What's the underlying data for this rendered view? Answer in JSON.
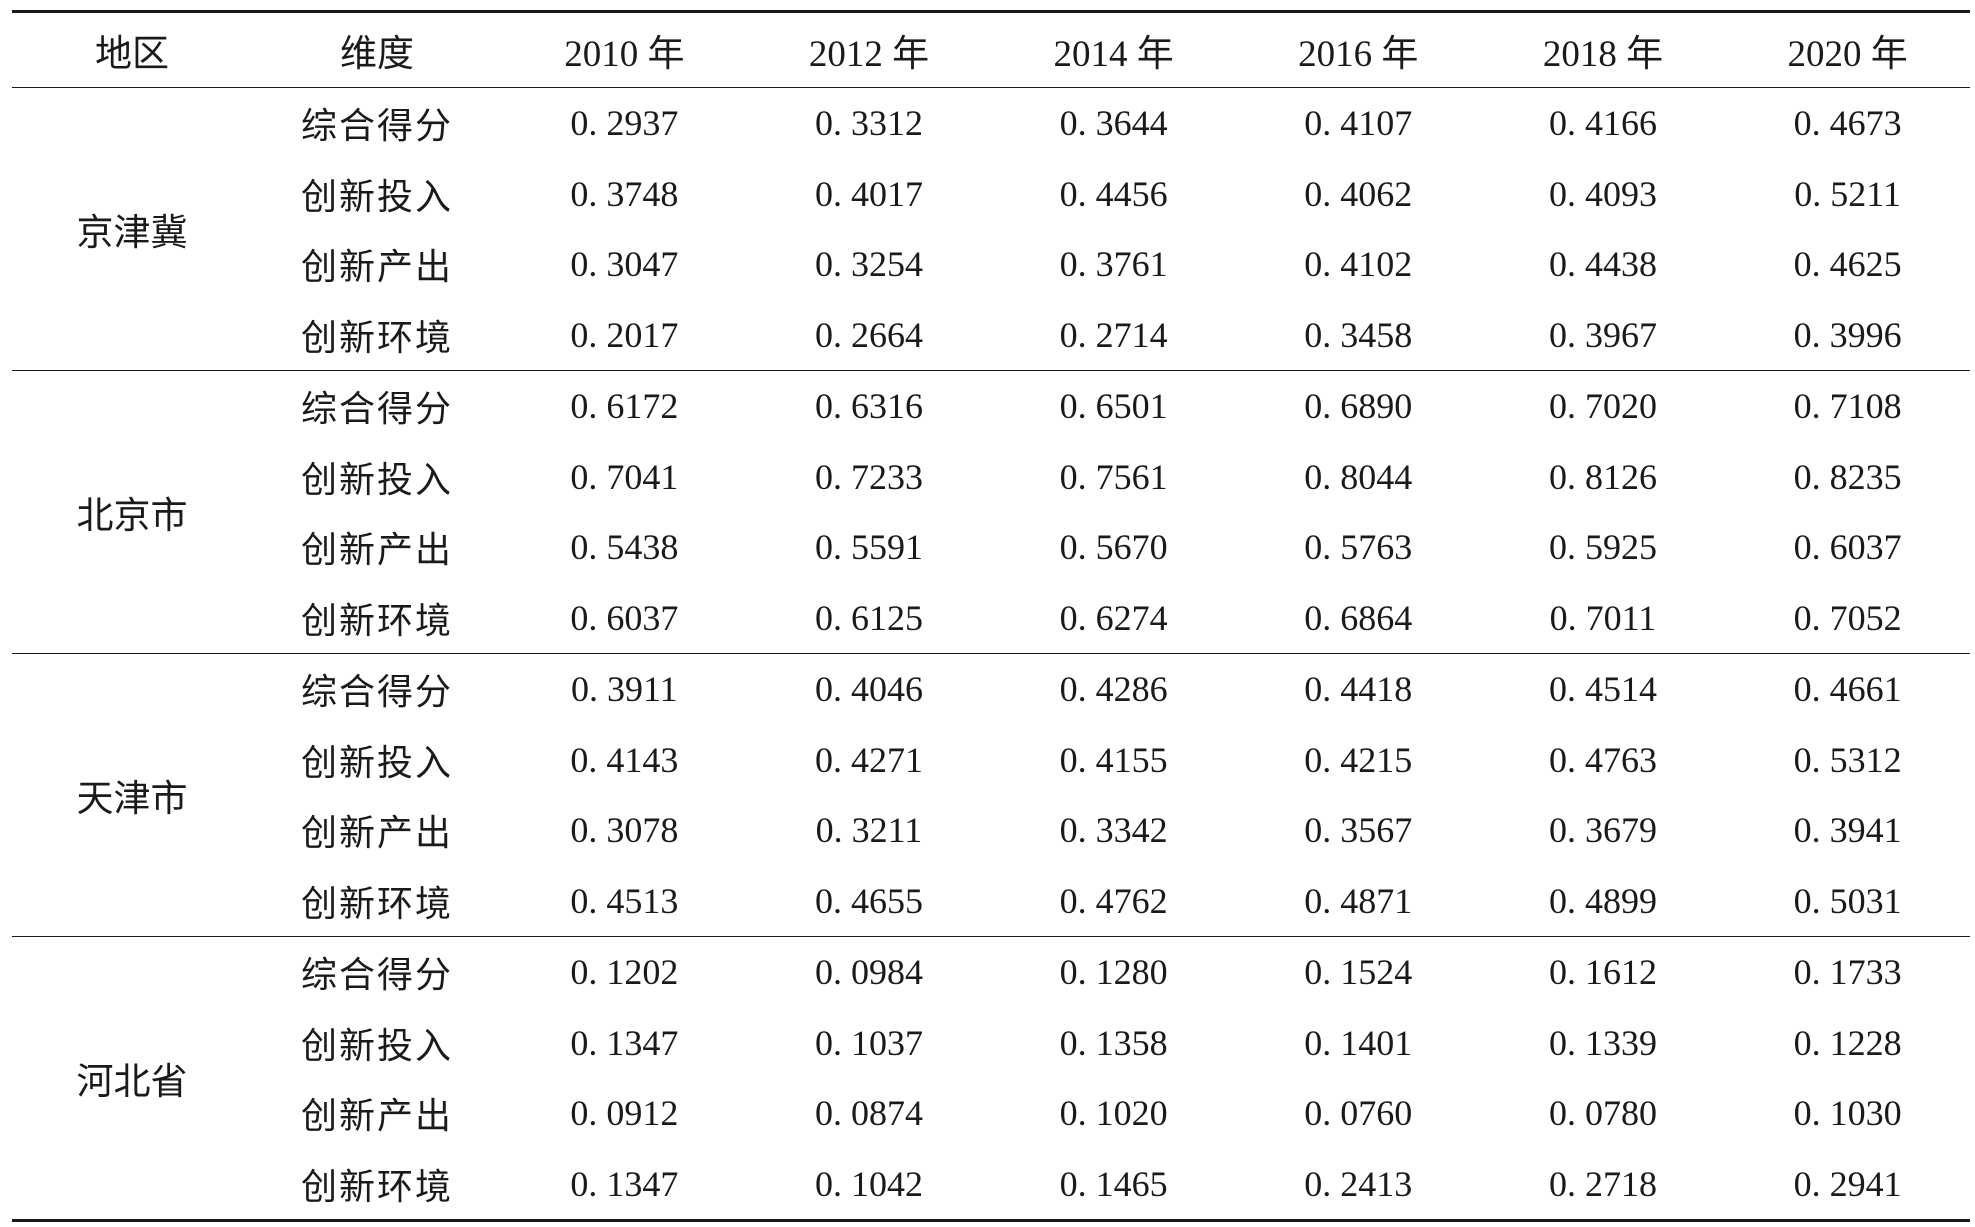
{
  "table": {
    "headers": [
      "地区",
      "维度",
      "2010 年",
      "2012 年",
      "2014 年",
      "2016 年",
      "2018 年",
      "2020 年"
    ],
    "groups": [
      {
        "region": "京津冀",
        "rows": [
          {
            "dimension": "综合得分",
            "values": [
              "0. 2937",
              "0. 3312",
              "0. 3644",
              "0. 4107",
              "0. 4166",
              "0. 4673"
            ]
          },
          {
            "dimension": "创新投入",
            "values": [
              "0. 3748",
              "0. 4017",
              "0. 4456",
              "0. 4062",
              "0. 4093",
              "0. 5211"
            ]
          },
          {
            "dimension": "创新产出",
            "values": [
              "0. 3047",
              "0. 3254",
              "0. 3761",
              "0. 4102",
              "0. 4438",
              "0. 4625"
            ]
          },
          {
            "dimension": "创新环境",
            "values": [
              "0. 2017",
              "0. 2664",
              "0. 2714",
              "0. 3458",
              "0. 3967",
              "0. 3996"
            ]
          }
        ]
      },
      {
        "region": "北京市",
        "rows": [
          {
            "dimension": "综合得分",
            "values": [
              "0. 6172",
              "0. 6316",
              "0. 6501",
              "0. 6890",
              "0. 7020",
              "0. 7108"
            ]
          },
          {
            "dimension": "创新投入",
            "values": [
              "0. 7041",
              "0. 7233",
              "0. 7561",
              "0. 8044",
              "0. 8126",
              "0. 8235"
            ]
          },
          {
            "dimension": "创新产出",
            "values": [
              "0. 5438",
              "0. 5591",
              "0. 5670",
              "0. 5763",
              "0. 5925",
              "0. 6037"
            ]
          },
          {
            "dimension": "创新环境",
            "values": [
              "0. 6037",
              "0. 6125",
              "0. 6274",
              "0. 6864",
              "0. 7011",
              "0. 7052"
            ]
          }
        ]
      },
      {
        "region": "天津市",
        "rows": [
          {
            "dimension": "综合得分",
            "values": [
              "0. 3911",
              "0. 4046",
              "0. 4286",
              "0. 4418",
              "0. 4514",
              "0. 4661"
            ]
          },
          {
            "dimension": "创新投入",
            "values": [
              "0. 4143",
              "0. 4271",
              "0. 4155",
              "0. 4215",
              "0. 4763",
              "0. 5312"
            ]
          },
          {
            "dimension": "创新产出",
            "values": [
              "0. 3078",
              "0. 3211",
              "0. 3342",
              "0. 3567",
              "0. 3679",
              "0. 3941"
            ]
          },
          {
            "dimension": "创新环境",
            "values": [
              "0. 4513",
              "0. 4655",
              "0. 4762",
              "0. 4871",
              "0. 4899",
              "0. 5031"
            ]
          }
        ]
      },
      {
        "region": "河北省",
        "rows": [
          {
            "dimension": "综合得分",
            "values": [
              "0. 1202",
              "0. 0984",
              "0. 1280",
              "0. 1524",
              "0. 1612",
              "0. 1733"
            ]
          },
          {
            "dimension": "创新投入",
            "values": [
              "0. 1347",
              "0. 1037",
              "0. 1358",
              "0. 1401",
              "0. 1339",
              "0. 1228"
            ]
          },
          {
            "dimension": "创新产出",
            "values": [
              "0. 0912",
              "0. 0874",
              "0. 1020",
              "0. 0760",
              "0. 0780",
              "0. 1030"
            ]
          },
          {
            "dimension": "创新环境",
            "values": [
              "0. 1347",
              "0. 1042",
              "0. 1465",
              "0. 2413",
              "0. 2718",
              "0. 2941"
            ]
          }
        ]
      }
    ]
  }
}
